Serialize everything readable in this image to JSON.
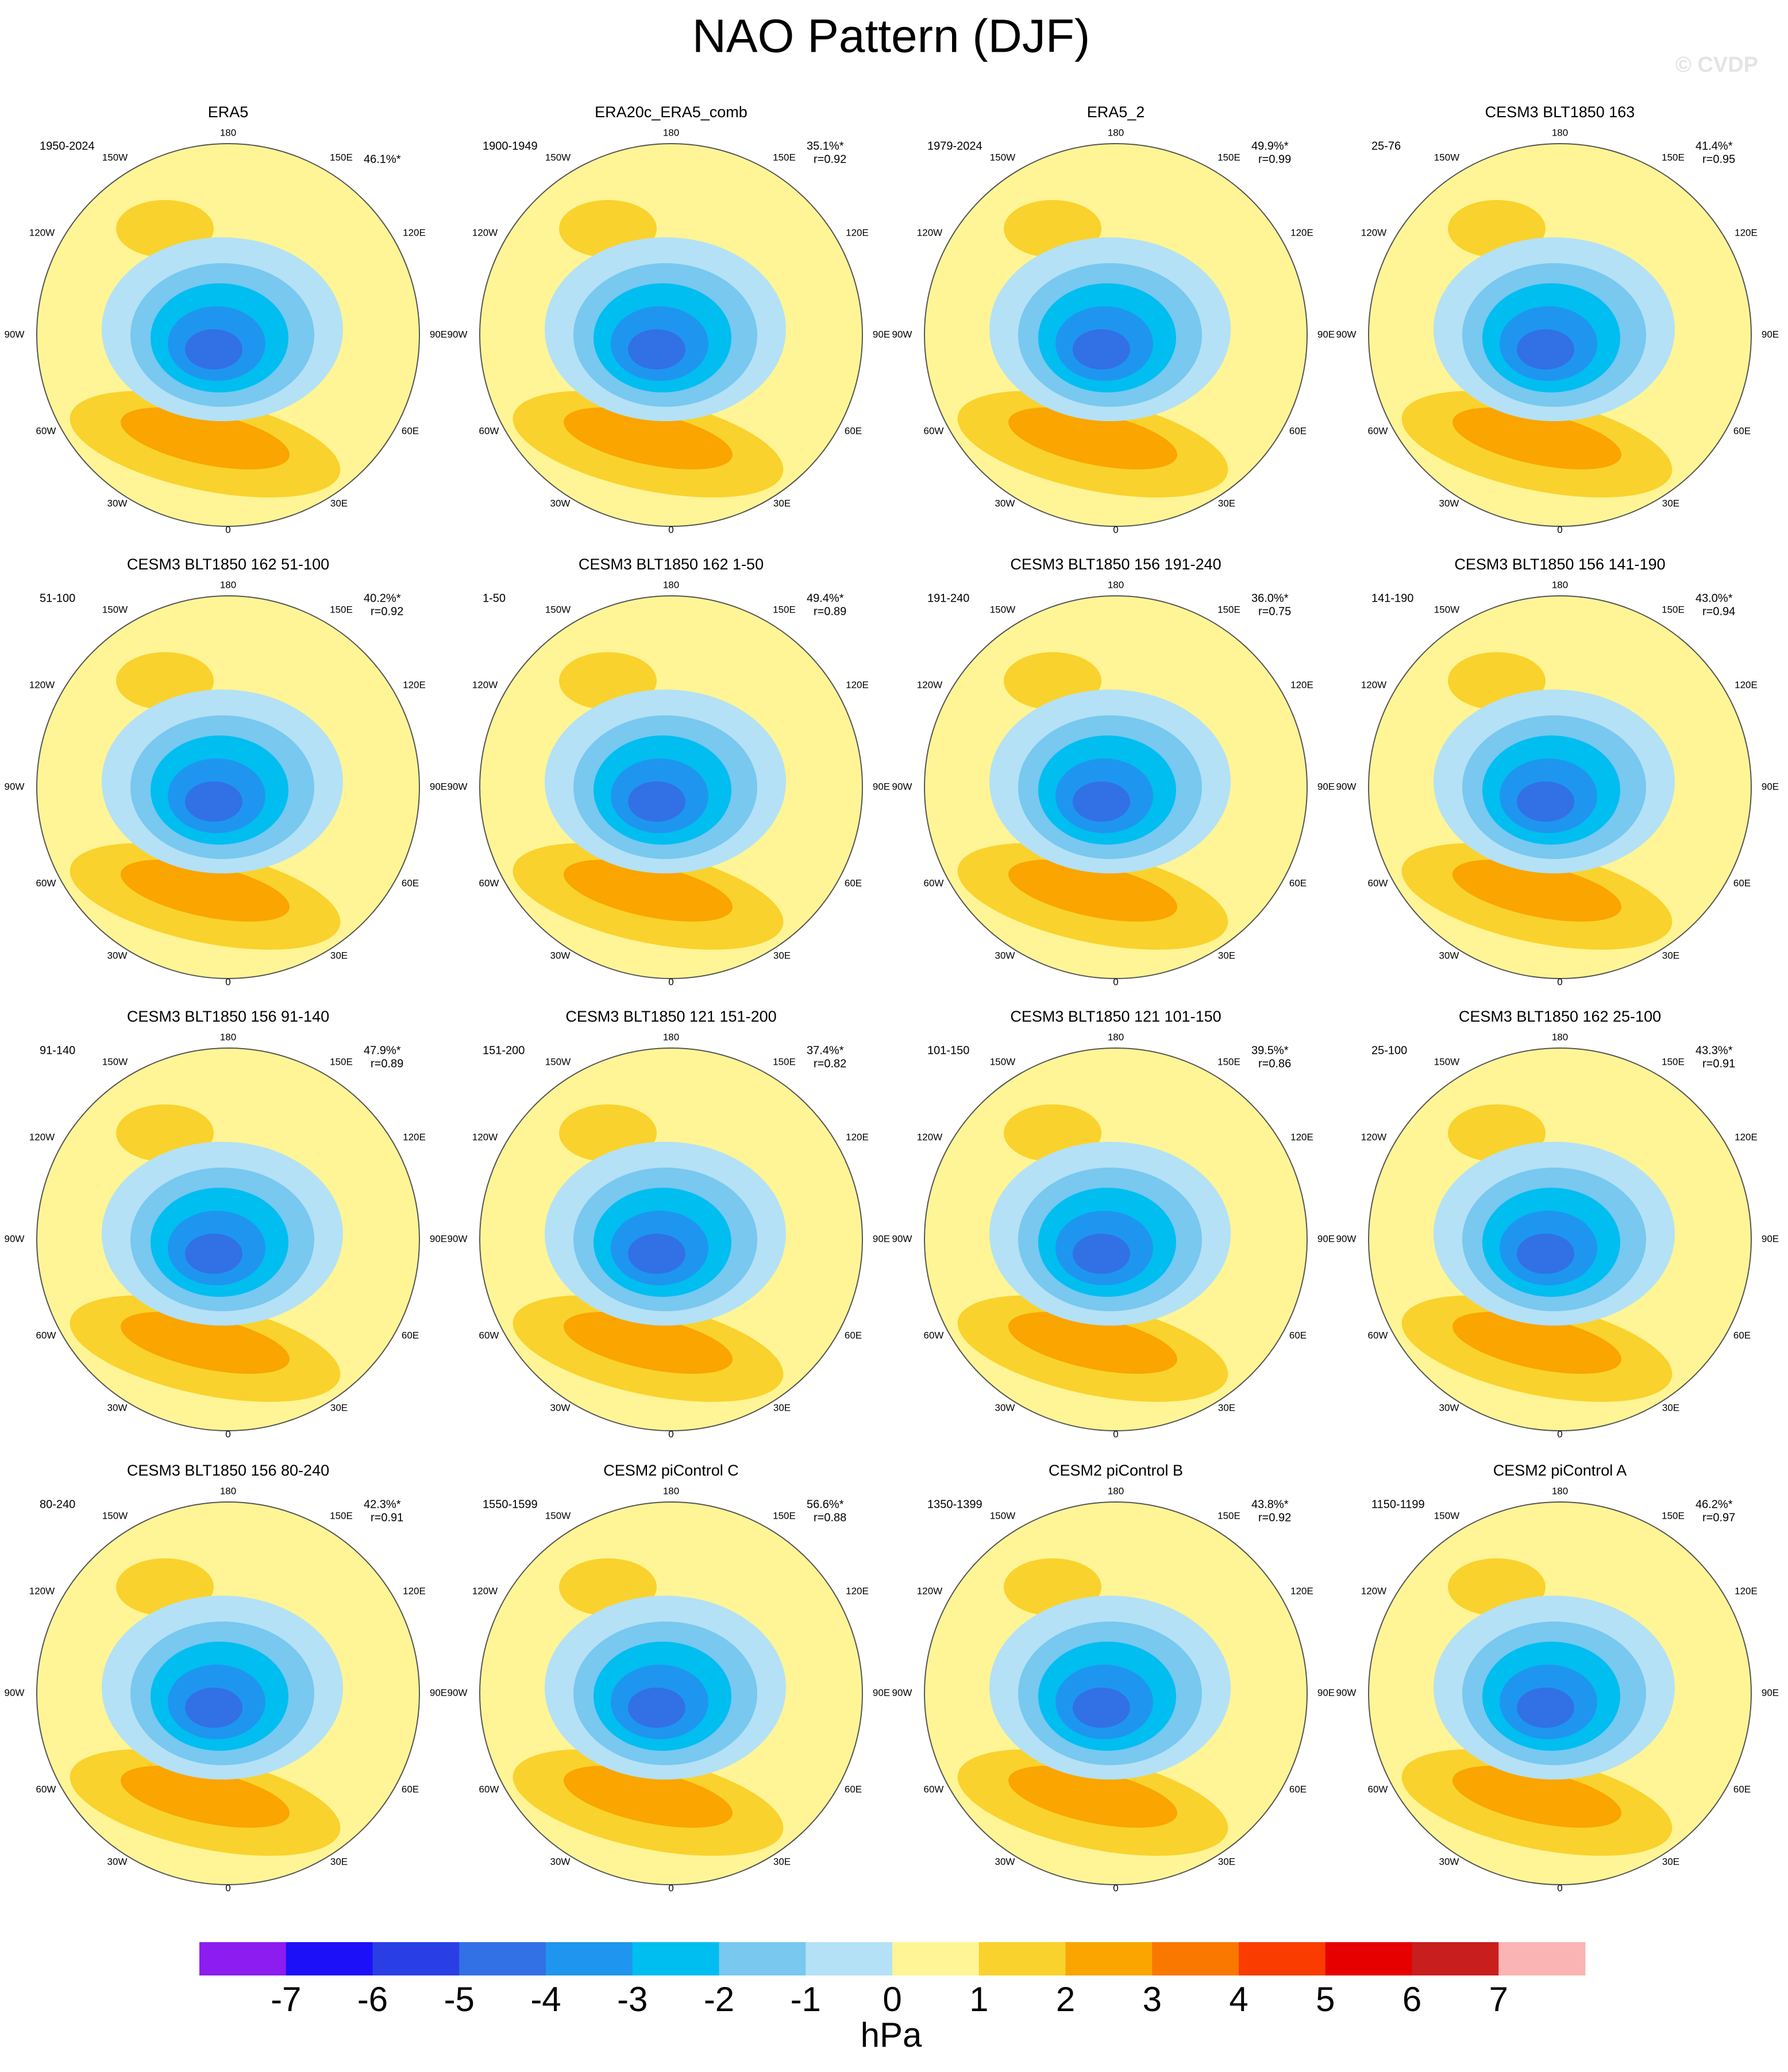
{
  "title": "NAO Pattern (DJF)",
  "watermark": "© CVDP",
  "lon_labels": [
    "180",
    "150W",
    "150E",
    "120W",
    "120E",
    "90W",
    "90E",
    "60W",
    "60E",
    "30W",
    "30E",
    "0"
  ],
  "panels": [
    {
      "title": "ERA5",
      "period": "1950-2024",
      "pct": "46.1%*"
    },
    {
      "title": "ERA20c_ERA5_comb",
      "period": "1900-1949",
      "pct": "35.1%*",
      "r": "r=0.92"
    },
    {
      "title": "ERA5_2",
      "period": "1979-2024",
      "pct": "49.9%*",
      "r": "r=0.99"
    },
    {
      "title": "CESM3 BLT1850 163",
      "period": "25-76",
      "pct": "41.4%*",
      "r": "r=0.95"
    },
    {
      "title": "CESM3 BLT1850 162 51-100",
      "period": "51-100",
      "pct": "40.2%*",
      "r": "r=0.92"
    },
    {
      "title": "CESM3 BLT1850 162 1-50",
      "period": "1-50",
      "pct": "49.4%*",
      "r": "r=0.89"
    },
    {
      "title": "CESM3 BLT1850 156 191-240",
      "period": "191-240",
      "pct": "36.0%*",
      "r": "r=0.75"
    },
    {
      "title": "CESM3 BLT1850 156 141-190",
      "period": "141-190",
      "pct": "43.0%*",
      "r": "r=0.94"
    },
    {
      "title": "CESM3 BLT1850 156 91-140",
      "period": "91-140",
      "pct": "47.9%*",
      "r": "r=0.89"
    },
    {
      "title": "CESM3 BLT1850 121 151-200",
      "period": "151-200",
      "pct": "37.4%*",
      "r": "r=0.82"
    },
    {
      "title": "CESM3 BLT1850 121 101-150",
      "period": "101-150",
      "pct": "39.5%*",
      "r": "r=0.86"
    },
    {
      "title": "CESM3 BLT1850 162 25-100",
      "period": "25-100",
      "pct": "43.3%*",
      "r": "r=0.91"
    },
    {
      "title": "CESM3 BLT1850 156 80-240",
      "period": "80-240",
      "pct": "42.3%*",
      "r": "r=0.91"
    },
    {
      "title": "CESM2 piControl C",
      "period": "1550-1599",
      "pct": "56.6%*",
      "r": "r=0.88"
    },
    {
      "title": "CESM2 piControl B",
      "period": "1350-1399",
      "pct": "43.8%*",
      "r": "r=0.92"
    },
    {
      "title": "CESM2 piControl A",
      "period": "1150-1199",
      "pct": "46.2%*",
      "r": "r=0.97"
    }
  ],
  "colorbar": {
    "colors": [
      "#8c1cf0",
      "#1c10f8",
      "#2a3ee6",
      "#3270e6",
      "#1e96f0",
      "#00bef0",
      "#78c8f0",
      "#b4e1f5",
      "#fff596",
      "#fad22d",
      "#faa500",
      "#fa7800",
      "#fa3c00",
      "#e60000",
      "#c81e1e",
      "#fab4b4"
    ],
    "ticks": [
      -7,
      -6,
      -5,
      -4,
      -3,
      -2,
      -1,
      0,
      1,
      2,
      3,
      4,
      5,
      6,
      7
    ],
    "unit": "hPa"
  }
}
